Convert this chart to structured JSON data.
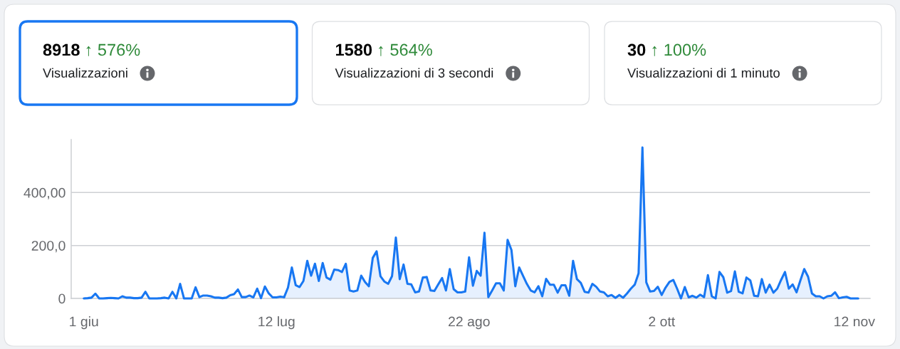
{
  "chart_data": [
    {
      "type": "other",
      "title": "8918",
      "annotations": [
        "↑ 576%"
      ],
      "subtitle": "Visualizzazioni"
    },
    {
      "type": "other",
      "title": "1580",
      "annotations": [
        "↑ 564%"
      ],
      "subtitle": "Visualizzazioni di 3 secondi"
    },
    {
      "type": "other",
      "title": "30",
      "annotations": [
        "↑ 100%"
      ],
      "subtitle": "Visualizzazioni di 1 minuto"
    },
    {
      "type": "line",
      "categories": [
        "1 giu",
        null,
        null,
        null,
        null,
        null,
        null,
        null,
        null,
        null,
        null,
        null,
        null,
        null,
        null,
        null,
        null,
        null,
        null,
        null,
        null,
        null,
        null,
        null,
        null,
        null,
        null,
        null,
        null,
        null,
        null,
        null,
        null,
        null,
        null,
        null,
        null,
        null,
        null,
        null,
        null,
        null,
        null,
        null,
        null,
        null,
        null,
        null,
        null,
        null,
        "12 lug",
        null,
        null,
        null,
        null,
        null,
        null,
        null,
        null,
        null,
        null,
        null,
        null,
        null,
        null,
        null,
        null,
        null,
        null,
        null,
        null,
        null,
        null,
        null,
        null,
        null,
        null,
        null,
        null,
        null,
        null,
        null,
        null,
        null,
        null,
        null,
        null,
        null,
        null,
        null,
        null,
        null,
        null,
        null,
        null,
        null,
        null,
        null,
        null,
        null,
        "22 ago",
        null,
        null,
        null,
        null,
        null,
        null,
        null,
        null,
        null,
        null,
        null,
        null,
        null,
        null,
        null,
        null,
        null,
        null,
        null,
        null,
        null,
        null,
        null,
        null,
        null,
        null,
        null,
        null,
        null,
        null,
        null,
        null,
        null,
        null,
        null,
        null,
        null,
        null,
        null,
        null,
        null,
        null,
        null,
        null,
        null,
        null,
        null,
        null,
        null,
        "2 ott",
        null,
        null,
        null,
        null,
        null,
        null,
        null,
        null,
        null,
        null,
        null,
        null,
        null,
        null,
        null,
        null,
        null,
        null,
        null,
        null,
        null,
        null,
        null,
        null,
        null,
        null,
        null,
        null,
        null,
        null,
        null,
        null,
        null,
        null,
        null,
        null,
        null,
        null,
        null,
        null,
        null,
        null,
        null,
        null,
        null,
        null,
        null,
        null,
        null,
        "12 nov",
        null
      ],
      "series": [
        {
          "type": "line",
          "color": "#1877f2",
          "values": [
            0,
            1,
            3,
            18,
            0,
            0,
            1,
            2,
            1,
            0,
            8,
            3,
            3,
            1,
            1,
            3,
            25,
            0,
            0,
            0,
            1,
            3,
            0,
            25,
            0,
            55,
            0,
            0,
            0,
            42,
            5,
            11,
            11,
            8,
            3,
            3,
            1,
            3,
            12,
            16,
            34,
            5,
            5,
            11,
            4,
            37,
            1,
            45,
            19,
            4,
            4,
            7,
            5,
            null,
            null,
            null,
            null,
            null,
            null,
            null,
            null,
            null,
            null,
            null,
            null,
            null,
            null,
            null,
            null,
            null,
            null,
            null,
            null,
            null,
            null,
            null,
            null,
            null,
            null,
            null,
            null,
            null,
            null,
            null,
            null,
            null,
            null,
            null,
            null,
            null,
            null,
            null,
            null,
            null,
            null,
            null,
            null,
            null,
            null,
            null,
            null,
            null,
            null,
            null,
            null,
            null,
            null,
            null,
            null,
            null,
            null,
            null,
            null,
            null,
            null,
            null,
            null,
            null,
            null,
            null,
            null,
            null,
            null,
            null,
            null,
            null,
            null,
            null,
            null,
            null,
            null,
            null,
            null,
            null,
            null,
            null,
            null,
            null,
            null,
            null,
            null,
            null,
            null,
            null,
            null,
            null,
            null,
            null,
            null,
            null,
            null,
            null,
            null,
            null,
            null,
            null,
            null,
            null,
            null,
            null,
            null,
            null,
            null,
            null,
            null,
            null,
            null,
            null,
            null,
            null,
            null,
            null,
            null,
            null,
            null,
            null,
            null,
            null,
            null,
            null,
            null,
            null,
            null,
            null,
            null,
            null,
            null,
            null,
            null,
            null,
            null,
            null,
            null,
            null,
            null,
            null,
            null,
            null,
            null,
            null,
            null,
            null
          ]
        },
        {
          "type": "area",
          "color": "#1877f2",
          "values": [
            null,
            null,
            null,
            null,
            null,
            null,
            null,
            null,
            null,
            null,
            null,
            null,
            null,
            null,
            null,
            null,
            null,
            null,
            null,
            null,
            null,
            null,
            null,
            null,
            null,
            null,
            null,
            null,
            null,
            null,
            null,
            null,
            null,
            null,
            null,
            null,
            null,
            null,
            null,
            null,
            null,
            null,
            null,
            null,
            null,
            null,
            null,
            null,
            null,
            null,
            null,
            null,
            5,
            41,
            117,
            50,
            43,
            66,
            142,
            86,
            131,
            66,
            134,
            79,
            71,
            109,
            107,
            100,
            131,
            30,
            26,
            30,
            86,
            62,
            46,
            153,
            178,
            84,
            64,
            55,
            84,
            230,
            73,
            128,
            55,
            53,
            23,
            26,
            79,
            81,
            30,
            28,
            53,
            77,
            30,
            111,
            35,
            23,
            23,
            26,
            155,
            48,
            104,
            86,
            248,
            5,
            30,
            57,
            57,
            30,
            221,
            183,
            46,
            117,
            86,
            55,
            30,
            23,
            46,
            8,
            74,
            52,
            52,
            22,
            50,
            50,
            10,
            142,
            73,
            59,
            25,
            22,
            55,
            44,
            26,
            23,
            8,
            13,
            2,
            13,
            3,
            19,
            37,
            52,
            95,
            570,
            61,
            26,
            28,
            44,
            13,
            41,
            62,
            70,
            37,
            0,
            43,
            4,
            10,
            3,
            14,
            5,
            88,
            8,
            0,
            100,
            80,
            22,
            28,
            102,
            25,
            19,
            79,
            68,
            10,
            8,
            73,
            22,
            52,
            22,
            37,
            70,
            100,
            37,
            53,
            23,
            68,
            111,
            82,
            19,
            8,
            8,
            0,
            8,
            10,
            23,
            1,
            4,
            6,
            0,
            0,
            0
          ]
        }
      ],
      "ylim": [
        0,
        600
      ],
      "yticks": [
        0,
        {
          "value": 200,
          "label": "200,0"
        },
        {
          "value": 400,
          "label": "400,00"
        }
      ],
      "grid": "y"
    }
  ]
}
